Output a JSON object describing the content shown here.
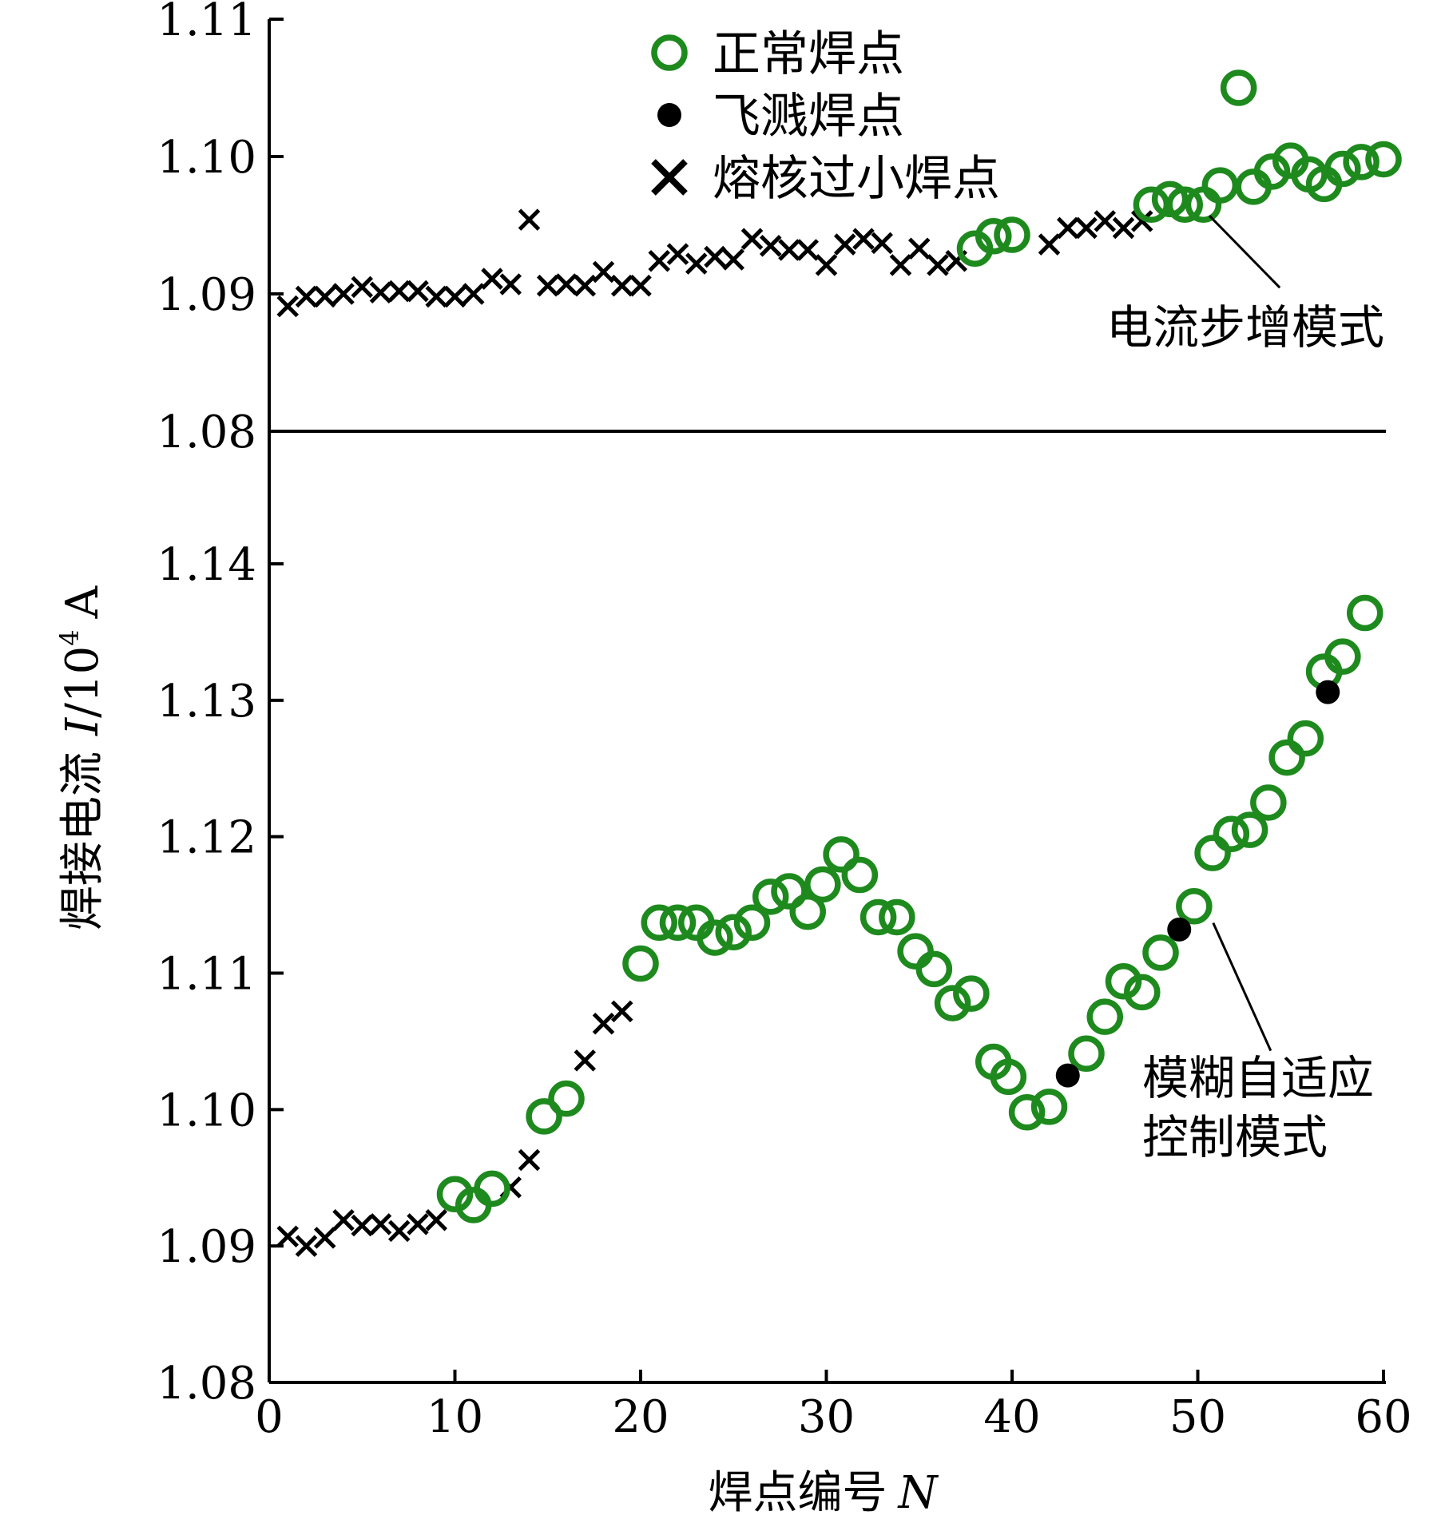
{
  "chart_data": {
    "type": "scatter",
    "xlabel": "焊点编号",
    "xlabel_var": "N",
    "ylabel": "焊接电流",
    "ylabel_var": "I",
    "ylabel_unit": "/10",
    "ylabel_exp": "4",
    "ylabel_unit2": "A",
    "xlim": [
      0,
      60
    ],
    "x_ticks": [
      0,
      10,
      20,
      30,
      40,
      50,
      60
    ],
    "x_tick_labels": [
      "0",
      "10",
      "20",
      "30",
      "40",
      "50",
      "60"
    ],
    "legend": {
      "position": "top-center",
      "entries": [
        {
          "key": "normal",
          "label": "正常焊点"
        },
        {
          "key": "spatter",
          "label": "飞溅焊点"
        },
        {
          "key": "small",
          "label": "熔核过小焊点"
        }
      ]
    },
    "colors": {
      "normal": "#1e8a1e",
      "spatter": "#000000",
      "small": "#000000",
      "axis": "#000000"
    },
    "panels": [
      {
        "name": "top",
        "ylim": [
          1.08,
          1.11
        ],
        "y_ticks": [
          1.08,
          1.09,
          1.1,
          1.11
        ],
        "y_tick_labels": [
          "1.08",
          "1.09",
          "1.10",
          "1.11"
        ],
        "annotation": {
          "lines": [
            "电流步增模式"
          ],
          "target_x": 50.2,
          "target_y": 1.0965
        },
        "series": [
          {
            "key": "small",
            "points": [
              [
                1,
                1.0891
              ],
              [
                2,
                1.0898
              ],
              [
                3,
                1.0898
              ],
              [
                4,
                1.09
              ],
              [
                5,
                1.0905
              ],
              [
                6,
                1.0901
              ],
              [
                7,
                1.0902
              ],
              [
                8,
                1.0902
              ],
              [
                9,
                1.0898
              ],
              [
                10,
                1.0898
              ],
              [
                11,
                1.09
              ],
              [
                12,
                1.0911
              ],
              [
                13,
                1.0907
              ],
              [
                14,
                1.0954
              ],
              [
                15,
                1.0906
              ],
              [
                16,
                1.0907
              ],
              [
                17,
                1.0906
              ],
              [
                18,
                1.0916
              ],
              [
                19,
                1.0906
              ],
              [
                20,
                1.0906
              ],
              [
                21,
                1.0924
              ],
              [
                22,
                1.0929
              ],
              [
                23,
                1.0922
              ],
              [
                24,
                1.0927
              ],
              [
                25,
                1.0925
              ],
              [
                26,
                1.094
              ],
              [
                27,
                1.0935
              ],
              [
                28,
                1.0932
              ],
              [
                29,
                1.0932
              ],
              [
                30,
                1.0921
              ],
              [
                31,
                1.0936
              ],
              [
                32,
                1.094
              ],
              [
                33,
                1.0937
              ],
              [
                34,
                1.0921
              ],
              [
                35,
                1.0933
              ],
              [
                36,
                1.0921
              ],
              [
                37,
                1.0924
              ],
              [
                42,
                1.0936
              ],
              [
                43,
                1.0948
              ],
              [
                44,
                1.0948
              ],
              [
                45,
                1.0953
              ],
              [
                46,
                1.0948
              ],
              [
                47,
                1.0953
              ]
            ]
          },
          {
            "key": "normal",
            "points": [
              [
                38,
                1.0933
              ],
              [
                39,
                1.0942
              ],
              [
                40,
                1.0943
              ],
              [
                47.5,
                1.0965
              ],
              [
                48.5,
                1.0969
              ],
              [
                49.3,
                1.0965
              ],
              [
                50.3,
                1.0965
              ],
              [
                51.2,
                1.0979
              ],
              [
                52.2,
                1.105
              ],
              [
                53,
                1.0978
              ],
              [
                54,
                1.0989
              ],
              [
                55,
                1.0997
              ],
              [
                56,
                1.0987
              ],
              [
                56.8,
                1.098
              ],
              [
                57.8,
                1.0991
              ],
              [
                58.8,
                1.0996
              ],
              [
                60,
                1.0998
              ]
            ]
          }
        ]
      },
      {
        "name": "bottom",
        "ylim": [
          1.08,
          1.14
        ],
        "y_ticks": [
          1.08,
          1.09,
          1.1,
          1.11,
          1.12,
          1.13,
          1.14
        ],
        "y_tick_labels": [
          "1.08",
          "1.09",
          "1.10",
          "1.11",
          "1.12",
          "1.13",
          "1.14"
        ],
        "annotation": {
          "lines": [
            "模糊自适应",
            "控制模式"
          ],
          "target_x": 50.4,
          "target_y": 1.1145
        },
        "series": [
          {
            "key": "small",
            "points": [
              [
                1,
                1.0907
              ],
              [
                2,
                1.09
              ],
              [
                3,
                1.0906
              ],
              [
                4,
                1.0919
              ],
              [
                5,
                1.0915
              ],
              [
                6,
                1.0916
              ],
              [
                7,
                1.0911
              ],
              [
                8,
                1.0916
              ],
              [
                9,
                1.0919
              ],
              [
                13,
                1.0943
              ],
              [
                14,
                1.0963
              ],
              [
                17,
                1.1036
              ],
              [
                18,
                1.1063
              ],
              [
                19,
                1.1072
              ]
            ]
          },
          {
            "key": "normal",
            "points": [
              [
                10,
                1.0938
              ],
              [
                11,
                1.093
              ],
              [
                12,
                1.0942
              ],
              [
                14.8,
                1.0995
              ],
              [
                16,
                1.1008
              ],
              [
                20,
                1.1107
              ],
              [
                21,
                1.1137
              ],
              [
                22,
                1.1137
              ],
              [
                23,
                1.1137
              ],
              [
                24,
                1.1126
              ],
              [
                25,
                1.113
              ],
              [
                26,
                1.1137
              ],
              [
                27,
                1.1156
              ],
              [
                28,
                1.116
              ],
              [
                29,
                1.1145
              ],
              [
                29.8,
                1.1165
              ],
              [
                30.8,
                1.1187
              ],
              [
                31.8,
                1.1172
              ],
              [
                32.8,
                1.1141
              ],
              [
                33.8,
                1.1141
              ],
              [
                34.8,
                1.1116
              ],
              [
                35.8,
                1.1103
              ],
              [
                36.8,
                1.1078
              ],
              [
                37.8,
                1.1085
              ],
              [
                39,
                1.1035
              ],
              [
                39.8,
                1.1024
              ],
              [
                40.8,
                1.0998
              ],
              [
                42,
                1.1002
              ],
              [
                44,
                1.1041
              ],
              [
                45,
                1.1068
              ],
              [
                46,
                1.1094
              ],
              [
                47,
                1.1086
              ],
              [
                48,
                1.1115
              ],
              [
                49.8,
                1.1149
              ],
              [
                50.8,
                1.1188
              ],
              [
                51.8,
                1.1202
              ],
              [
                52.8,
                1.1205
              ],
              [
                53.8,
                1.1225
              ],
              [
                54.8,
                1.1258
              ],
              [
                55.8,
                1.1272
              ],
              [
                56.8,
                1.1321
              ],
              [
                57.8,
                1.1332
              ],
              [
                59,
                1.1364
              ]
            ]
          },
          {
            "key": "spatter",
            "points": [
              [
                43,
                1.1025
              ],
              [
                49,
                1.1132
              ],
              [
                57,
                1.1306
              ]
            ]
          }
        ]
      }
    ]
  }
}
